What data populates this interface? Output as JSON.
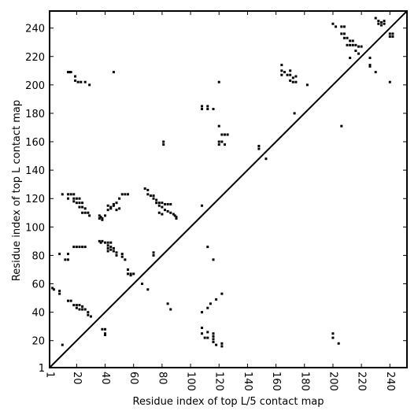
{
  "chart_data": {
    "type": "scatter",
    "xlabel": "Residue index of top L/5 contact map",
    "ylabel": "Residue index of top L contact map",
    "xlim": [
      1,
      252
    ],
    "ylim": [
      1,
      252
    ],
    "x_ticks": [
      1,
      20,
      40,
      60,
      80,
      100,
      120,
      140,
      160,
      180,
      200,
      220,
      240
    ],
    "y_ticks": [
      1,
      20,
      40,
      60,
      80,
      100,
      120,
      140,
      160,
      180,
      200,
      220,
      240
    ],
    "grid": false,
    "diagonal": true,
    "marker_color": "#000000",
    "series": [
      {
        "region": "upper-left",
        "points": [
          [
            14,
            209
          ],
          [
            15,
            209
          ],
          [
            16,
            209
          ],
          [
            19,
            206
          ],
          [
            19,
            203
          ],
          [
            21,
            202
          ],
          [
            23,
            202
          ],
          [
            26,
            202
          ],
          [
            29,
            200
          ],
          [
            46,
            209
          ],
          [
            120,
            202
          ],
          [
            108,
            185
          ],
          [
            108,
            183
          ],
          [
            112,
            185
          ],
          [
            112,
            183
          ],
          [
            116,
            183
          ],
          [
            120,
            171
          ],
          [
            122,
            165
          ],
          [
            124,
            165
          ],
          [
            126,
            165
          ],
          [
            120,
            160
          ],
          [
            122,
            160
          ],
          [
            120,
            158
          ],
          [
            124,
            158
          ],
          [
            81,
            160
          ],
          [
            81,
            158
          ],
          [
            148,
            157
          ],
          [
            148,
            155
          ],
          [
            153,
            148
          ],
          [
            10,
            123
          ],
          [
            14,
            123
          ],
          [
            16,
            123
          ],
          [
            18,
            123
          ],
          [
            14,
            120
          ],
          [
            18,
            120
          ],
          [
            20,
            120
          ],
          [
            22,
            120
          ],
          [
            18,
            118
          ],
          [
            20,
            117
          ],
          [
            22,
            117
          ],
          [
            24,
            117
          ],
          [
            22,
            114
          ],
          [
            24,
            114
          ],
          [
            26,
            113
          ],
          [
            24,
            110
          ],
          [
            26,
            110
          ],
          [
            28,
            110
          ],
          [
            29,
            108
          ],
          [
            36,
            108
          ],
          [
            37,
            107
          ],
          [
            38,
            106
          ],
          [
            38,
            105
          ],
          [
            36,
            106
          ],
          [
            40,
            108
          ],
          [
            42,
            112
          ],
          [
            44,
            114
          ],
          [
            46,
            116
          ],
          [
            48,
            117
          ],
          [
            50,
            120
          ],
          [
            52,
            123
          ],
          [
            54,
            123
          ],
          [
            56,
            123
          ],
          [
            42,
            115
          ],
          [
            44,
            113
          ],
          [
            46,
            115
          ],
          [
            48,
            112
          ],
          [
            50,
            113
          ],
          [
            68,
            127
          ],
          [
            70,
            126
          ],
          [
            70,
            123
          ],
          [
            72,
            122
          ],
          [
            74,
            122
          ],
          [
            74,
            120
          ],
          [
            76,
            119
          ],
          [
            76,
            117
          ],
          [
            78,
            117
          ],
          [
            80,
            117
          ],
          [
            82,
            116
          ],
          [
            84,
            116
          ],
          [
            86,
            116
          ],
          [
            78,
            115
          ],
          [
            80,
            114
          ],
          [
            82,
            112
          ],
          [
            84,
            111
          ],
          [
            86,
            110
          ],
          [
            88,
            109
          ],
          [
            80,
            109
          ],
          [
            78,
            110
          ],
          [
            89,
            108
          ],
          [
            90,
            107
          ],
          [
            90,
            106
          ],
          [
            108,
            115
          ],
          [
            18,
            86
          ],
          [
            20,
            86
          ],
          [
            22,
            86
          ],
          [
            24,
            86
          ],
          [
            26,
            86
          ],
          [
            36,
            90
          ],
          [
            37,
            89
          ],
          [
            38,
            90
          ],
          [
            40,
            89
          ],
          [
            42,
            89
          ],
          [
            44,
            89
          ],
          [
            42,
            87
          ],
          [
            44,
            86
          ],
          [
            42,
            85
          ],
          [
            44,
            84
          ],
          [
            46,
            83
          ],
          [
            42,
            83
          ],
          [
            46,
            85
          ],
          [
            48,
            82
          ],
          [
            48,
            80
          ],
          [
            52,
            81
          ],
          [
            52,
            79
          ],
          [
            54,
            77
          ],
          [
            8,
            81
          ],
          [
            12,
            77
          ],
          [
            14,
            81
          ],
          [
            14,
            77
          ],
          [
            56,
            70
          ],
          [
            56,
            67
          ],
          [
            58,
            67
          ],
          [
            58,
            66
          ],
          [
            60,
            67
          ],
          [
            74,
            82
          ],
          [
            74,
            80
          ],
          [
            112,
            86
          ],
          [
            116,
            77
          ],
          [
            3,
            57
          ],
          [
            4,
            56
          ],
          [
            8,
            55
          ],
          [
            8,
            53
          ],
          [
            14,
            48
          ],
          [
            16,
            48
          ],
          [
            18,
            45
          ],
          [
            20,
            43
          ],
          [
            22,
            42
          ],
          [
            24,
            42
          ],
          [
            20,
            45
          ],
          [
            22,
            45
          ],
          [
            24,
            44
          ],
          [
            26,
            42
          ],
          [
            28,
            40
          ],
          [
            28,
            38
          ],
          [
            30,
            37
          ],
          [
            66,
            60
          ],
          [
            70,
            56
          ],
          [
            38,
            28
          ],
          [
            40,
            28
          ],
          [
            40,
            25
          ],
          [
            40,
            24
          ],
          [
            10,
            17
          ]
        ]
      },
      {
        "region": "lower-right",
        "points": [
          [
            164,
            214
          ],
          [
            164,
            210
          ],
          [
            164,
            207
          ],
          [
            166,
            209
          ],
          [
            168,
            207
          ],
          [
            170,
            210
          ],
          [
            170,
            207
          ],
          [
            172,
            205
          ],
          [
            172,
            202
          ],
          [
            170,
            203
          ],
          [
            174,
            206
          ],
          [
            174,
            202
          ],
          [
            182,
            200
          ],
          [
            173,
            180
          ],
          [
            200,
            243
          ],
          [
            202,
            241
          ],
          [
            206,
            241
          ],
          [
            208,
            241
          ],
          [
            206,
            236
          ],
          [
            208,
            236
          ],
          [
            208,
            233
          ],
          [
            210,
            233
          ],
          [
            212,
            231
          ],
          [
            214,
            231
          ],
          [
            210,
            228
          ],
          [
            212,
            228
          ],
          [
            214,
            228
          ],
          [
            216,
            228
          ],
          [
            218,
            227
          ],
          [
            216,
            224
          ],
          [
            218,
            222
          ],
          [
            212,
            219
          ],
          [
            220,
            227
          ],
          [
            226,
            219
          ],
          [
            226,
            214
          ],
          [
            226,
            213
          ],
          [
            230,
            209
          ],
          [
            230,
            247
          ],
          [
            232,
            245
          ],
          [
            234,
            244
          ],
          [
            234,
            242
          ],
          [
            236,
            243
          ],
          [
            232,
            243
          ],
          [
            236,
            245
          ],
          [
            240,
            236
          ],
          [
            242,
            234
          ],
          [
            242,
            236
          ],
          [
            240,
            234
          ],
          [
            240,
            202
          ],
          [
            206,
            171
          ],
          [
            84,
            46
          ],
          [
            86,
            42
          ],
          [
            108,
            40
          ],
          [
            112,
            43
          ],
          [
            114,
            46
          ],
          [
            118,
            49
          ],
          [
            122,
            53
          ],
          [
            108,
            29
          ],
          [
            108,
            25
          ],
          [
            112,
            26
          ],
          [
            112,
            22
          ],
          [
            116,
            25
          ],
          [
            116,
            23
          ],
          [
            116,
            21
          ],
          [
            116,
            19
          ],
          [
            118,
            17
          ],
          [
            122,
            18
          ],
          [
            122,
            16
          ],
          [
            110,
            22
          ],
          [
            200,
            25
          ],
          [
            200,
            22
          ],
          [
            204,
            18
          ]
        ]
      }
    ]
  }
}
